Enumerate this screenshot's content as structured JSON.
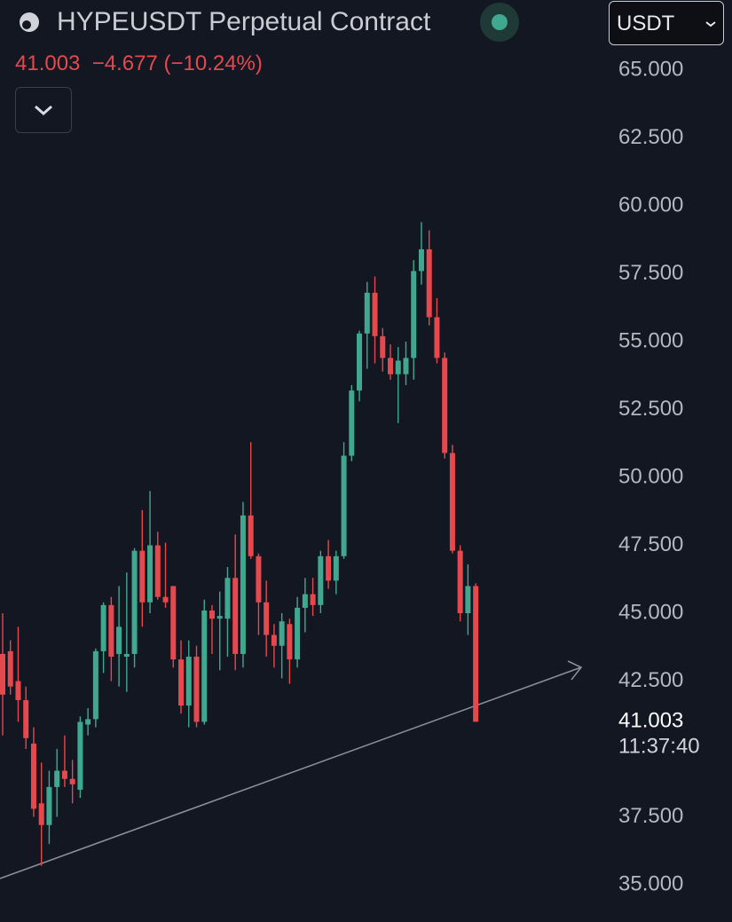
{
  "header": {
    "symbol": "HYPEUSDT Perpetual Contract",
    "price": "41.003",
    "change": "−4.677 (−10.24%)",
    "currency": "USDT"
  },
  "chart_data": {
    "type": "candlestick",
    "up_color": "#3fa88f",
    "down_color": "#e5484d",
    "ylim": [
      33.63,
      67.58
    ],
    "yticks": [
      {
        "value": 35,
        "label": "35.000"
      },
      {
        "value": 37.5,
        "label": "37.500"
      },
      {
        "value": 42.5,
        "label": "42.500"
      },
      {
        "value": 45,
        "label": "45.000"
      },
      {
        "value": 47.5,
        "label": "47.500"
      },
      {
        "value": 50,
        "label": "50.000"
      },
      {
        "value": 52.5,
        "label": "52.500"
      },
      {
        "value": 55,
        "label": "55.000"
      },
      {
        "value": 57.5,
        "label": "57.500"
      },
      {
        "value": 60,
        "label": "60.000"
      },
      {
        "value": 62.5,
        "label": "62.500"
      },
      {
        "value": 65,
        "label": "65.000"
      }
    ],
    "last_price": {
      "value": 41.003,
      "label": "41.003"
    },
    "countdown": "11:37:40",
    "ohlc": [
      [
        43.5,
        45,
        40.5,
        42
      ],
      [
        43.6,
        44,
        42,
        42.3
      ],
      [
        42.5,
        44.5,
        41,
        41.8
      ],
      [
        41.8,
        42.3,
        40,
        40.4
      ],
      [
        40.2,
        40.8,
        37.5,
        37.8
      ],
      [
        38,
        39.5,
        35.7,
        37.2
      ],
      [
        37.2,
        39.2,
        36.5,
        38.6
      ],
      [
        38.6,
        40,
        37.5,
        39.2
      ],
      [
        39.2,
        40.5,
        38.6,
        38.9
      ],
      [
        38.9,
        39.6,
        38,
        38.7
      ],
      [
        38.5,
        41.2,
        38.2,
        41
      ],
      [
        40.9,
        41.5,
        40.5,
        41.1
      ],
      [
        41.1,
        43.7,
        40.8,
        43.6
      ],
      [
        43.6,
        45.4,
        42.8,
        45.3
      ],
      [
        45.3,
        45.6,
        42.5,
        43.4
      ],
      [
        43.5,
        46,
        42.3,
        44.5
      ],
      [
        43.4,
        46.5,
        42.1,
        43.5
      ],
      [
        43.5,
        47.4,
        43,
        47.3
      ],
      [
        47.3,
        48.8,
        44.5,
        45.4
      ],
      [
        45.4,
        49.5,
        45,
        47.5
      ],
      [
        47.5,
        48,
        45.5,
        45.6
      ],
      [
        45.6,
        47.6,
        45.2,
        45.4
      ],
      [
        46,
        46,
        43,
        43.3
      ],
      [
        43.3,
        44,
        41.3,
        41.6
      ],
      [
        41.6,
        44,
        40.8,
        43.4
      ],
      [
        43.4,
        43.8,
        40.8,
        41
      ],
      [
        41,
        45.5,
        40.9,
        45.1
      ],
      [
        45.1,
        45.3,
        43.5,
        44.8
      ],
      [
        44.8,
        45.8,
        42.9,
        44.9
      ],
      [
        44.8,
        46.7,
        43.4,
        46.3
      ],
      [
        46.3,
        47.9,
        42.9,
        43.5
      ],
      [
        43.5,
        49.1,
        43,
        48.6
      ],
      [
        48.6,
        51.3,
        47,
        47.1
      ],
      [
        47.1,
        47.2,
        44.2,
        45.4
      ],
      [
        45.4,
        46.2,
        43.4,
        44.2
      ],
      [
        44.2,
        44.6,
        43,
        43.8
      ],
      [
        43.8,
        45,
        42.6,
        44.7
      ],
      [
        44.6,
        44.8,
        42.4,
        43.3
      ],
      [
        43.3,
        45.6,
        43,
        45.2
      ],
      [
        45.2,
        46.3,
        44.3,
        45.7
      ],
      [
        45.7,
        46.3,
        44.9,
        45.3
      ],
      [
        45.3,
        47.3,
        45,
        47.1
      ],
      [
        47.1,
        47.7,
        45.9,
        46.2
      ],
      [
        46.2,
        47.3,
        45.7,
        47.1
      ],
      [
        47.1,
        51.3,
        47,
        50.8
      ],
      [
        50.8,
        53.4,
        50.6,
        53.2
      ],
      [
        53.2,
        55.4,
        52.8,
        55.3
      ],
      [
        55.3,
        57.2,
        54,
        56.8
      ],
      [
        56.8,
        57.4,
        54.2,
        55.2
      ],
      [
        55.2,
        55.5,
        53.9,
        54.4
      ],
      [
        54.4,
        54.9,
        53.6,
        53.8
      ],
      [
        53.8,
        54.8,
        52,
        54.3
      ],
      [
        53.8,
        55,
        53.4,
        54.4
      ],
      [
        54.4,
        58,
        53.6,
        57.6
      ],
      [
        57.6,
        59.4,
        57.1,
        58.4
      ],
      [
        58.4,
        59.1,
        55.6,
        55.9
      ],
      [
        55.9,
        56.6,
        54.2,
        54.4
      ],
      [
        54.4,
        54.6,
        50.7,
        50.9
      ],
      [
        50.9,
        51.2,
        47.2,
        47.3
      ],
      [
        47.3,
        47.5,
        44.7,
        45
      ],
      [
        45,
        46.8,
        44.2,
        46
      ],
      [
        46,
        46.1,
        41,
        41.003
      ]
    ]
  }
}
